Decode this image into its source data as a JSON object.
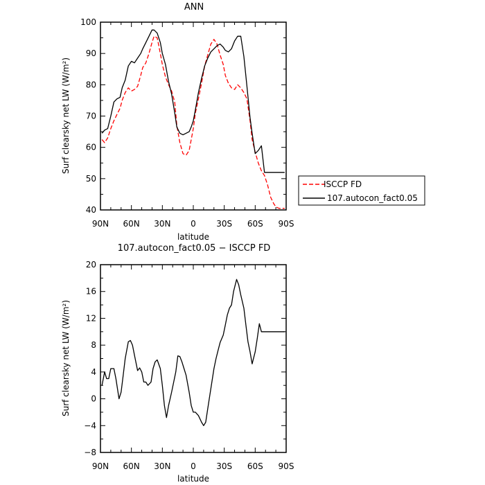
{
  "chart_data": [
    {
      "type": "line",
      "title": "ANN",
      "xlabel": "latitude",
      "ylabel": "Surf clearsky net LW (W/m²)",
      "xlim": [
        90,
        -90
      ],
      "ylim": [
        40,
        100
      ],
      "x_ticks": [
        "90N",
        "60N",
        "30N",
        "0",
        "30S",
        "60S",
        "90S"
      ],
      "y_ticks": [
        "40",
        "50",
        "60",
        "70",
        "80",
        "90",
        "100"
      ],
      "legend": {
        "placement": "right of plot",
        "entries": [
          "ISCCP FD",
          "107.autocon_fact0.05"
        ]
      },
      "series": [
        {
          "name": "ISCCP FD",
          "color": "#ff0000",
          "dash": "dashed",
          "x": [
            88.5,
            86,
            83,
            80,
            77,
            74,
            71,
            69,
            66,
            63,
            60,
            57,
            54,
            51,
            49,
            46,
            43,
            40,
            38,
            35,
            32,
            30,
            27,
            24,
            21,
            18,
            16,
            13,
            10,
            7,
            4,
            2,
            0,
            -2,
            -5,
            -8,
            -11,
            -14,
            -17,
            -20,
            -23,
            -26,
            -29,
            -31,
            -34,
            -37,
            -40,
            -43,
            -46,
            -49,
            -52,
            -55,
            -57,
            -60,
            -63,
            -66,
            -69,
            -72,
            -75,
            -78,
            -80,
            -83,
            -86,
            -88.5
          ],
          "y": [
            62.5,
            61.5,
            63,
            66,
            68.5,
            70.5,
            72.5,
            75,
            77.5,
            79,
            78,
            78.5,
            79.5,
            83,
            85.5,
            87,
            90,
            93.5,
            95.5,
            95,
            90,
            86.5,
            82.5,
            80,
            78,
            74.5,
            67,
            61.5,
            58,
            57.5,
            59,
            62.5,
            66,
            71,
            75.5,
            80.5,
            86,
            89.5,
            93,
            94.5,
            93,
            89.5,
            86.5,
            83,
            80.5,
            79,
            78.5,
            80,
            79,
            77.5,
            75.5,
            68.5,
            62.5,
            58.5,
            55,
            52.5,
            51,
            48,
            44,
            42,
            41,
            40.5,
            40.5,
            40.5
          ]
        },
        {
          "name": "107.autocon_fact0.05",
          "color": "#000000",
          "dash": "solid",
          "x": [
            88.5,
            86,
            83,
            80,
            77,
            74,
            71,
            69,
            66,
            63,
            60,
            57,
            54,
            51,
            49,
            46,
            43,
            40,
            38,
            35,
            32,
            30,
            27,
            24,
            21,
            18,
            16,
            13,
            10,
            7,
            4,
            2,
            0,
            -2,
            -5,
            -8,
            -11,
            -14,
            -17,
            -20,
            -23,
            -26,
            -29,
            -31,
            -34,
            -37,
            -40,
            -43,
            -46,
            -49,
            -52,
            -55,
            -57,
            -60,
            -63,
            -66,
            -69,
            -72,
            -75,
            -78,
            -80,
            -83,
            -86,
            -88.5
          ],
          "y": [
            64.5,
            65.5,
            66,
            70,
            74.5,
            75.5,
            76,
            79,
            81.5,
            86,
            87.5,
            87,
            88.5,
            90,
            91.5,
            93.5,
            95.5,
            97.5,
            97.5,
            96.5,
            93.5,
            90,
            86.5,
            81,
            77,
            71,
            66.5,
            64.5,
            64,
            64.5,
            65,
            66.5,
            68.5,
            72,
            77.5,
            82,
            86,
            88.5,
            90.5,
            91.5,
            92.5,
            93,
            92,
            91,
            90.5,
            91.5,
            94,
            95.5,
            95.5,
            89,
            79.5,
            69.5,
            64.5,
            58,
            59,
            60.5,
            52,
            52,
            52,
            52,
            52,
            52,
            52,
            52
          ]
        }
      ]
    },
    {
      "type": "line",
      "title": "107.autocon_fact0.05 − ISCCP FD",
      "xlabel": "latitude",
      "ylabel": "Surf clearsky net LW (W/m²)",
      "xlim": [
        90,
        -90
      ],
      "ylim": [
        -8,
        20
      ],
      "x_ticks": [
        "90N",
        "60N",
        "30N",
        "0",
        "30S",
        "60S",
        "90S"
      ],
      "y_ticks": [
        "−8",
        "−4",
        "0",
        "4",
        "8",
        "12",
        "16",
        "20"
      ],
      "series": [
        {
          "color": "#000000",
          "dash": "solid",
          "x": [
            88.5,
            86,
            84,
            82,
            80,
            77,
            75,
            72,
            70,
            68,
            66,
            63,
            61,
            59,
            57,
            54,
            52,
            50,
            48,
            46,
            44,
            41,
            39,
            37,
            35,
            32,
            30,
            28,
            26,
            24,
            21,
            19,
            17,
            15,
            13,
            11,
            9,
            7,
            4,
            2,
            0,
            -2,
            -5,
            -8,
            -10,
            -12,
            -14,
            -16,
            -18,
            -20,
            -22,
            -24,
            -26,
            -29,
            -31,
            -33,
            -35,
            -37,
            -39,
            -42,
            -44,
            -46,
            -49,
            -51,
            -53,
            -55,
            -57,
            -60,
            -62,
            -64,
            -66,
            -69,
            -71,
            -73,
            -75,
            -77,
            -80,
            -82,
            -84,
            -86,
            -88.5
          ],
          "y": [
            2,
            4,
            3,
            3,
            4.5,
            4.5,
            3,
            0,
            1,
            3.5,
            6,
            8.5,
            8.7,
            8,
            6.5,
            4.2,
            4.6,
            4,
            2.5,
            2.5,
            2,
            2.5,
            4.5,
            5.5,
            5.8,
            4.5,
            2,
            -1,
            -2.8,
            -1,
            1,
            2.5,
            4,
            6.4,
            6.3,
            5.5,
            4.5,
            3.5,
            1,
            -1,
            -2,
            -2,
            -2.5,
            -3.5,
            -4,
            -3.5,
            -1.5,
            0.5,
            2.5,
            4.5,
            6,
            7.2,
            8.4,
            9.5,
            11,
            12.5,
            13.5,
            14,
            16,
            17.8,
            17,
            15.5,
            13.5,
            11,
            8.5,
            7,
            5.2,
            7,
            9,
            11.2,
            10,
            10,
            10,
            10,
            10,
            10,
            10,
            10,
            10,
            10,
            10
          ]
        }
      ]
    }
  ]
}
